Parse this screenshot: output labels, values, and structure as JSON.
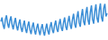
{
  "chart_data": {
    "type": "line",
    "color": "#3b8ed6",
    "tick_labels": false,
    "ylim": [
      30,
      100
    ],
    "values": [
      62,
      70,
      55,
      48,
      66,
      74,
      58,
      50,
      64,
      72,
      56,
      47,
      60,
      69,
      53,
      45,
      58,
      66,
      50,
      42,
      55,
      64,
      48,
      40,
      54,
      62,
      46,
      38,
      52,
      60,
      45,
      37,
      50,
      58,
      44,
      36,
      49,
      57,
      43,
      35,
      48,
      58,
      44,
      37,
      52,
      61,
      46,
      40,
      55,
      64,
      48,
      42,
      57,
      67,
      50,
      44,
      60,
      70,
      52,
      46,
      62,
      73,
      55,
      48,
      66,
      77,
      57,
      50,
      70,
      82,
      60,
      52,
      73,
      86,
      62,
      55,
      78,
      90,
      64,
      56,
      80,
      93,
      66,
      58,
      82,
      95,
      68,
      60,
      84,
      97,
      70,
      62,
      88,
      96,
      72,
      78
    ]
  }
}
